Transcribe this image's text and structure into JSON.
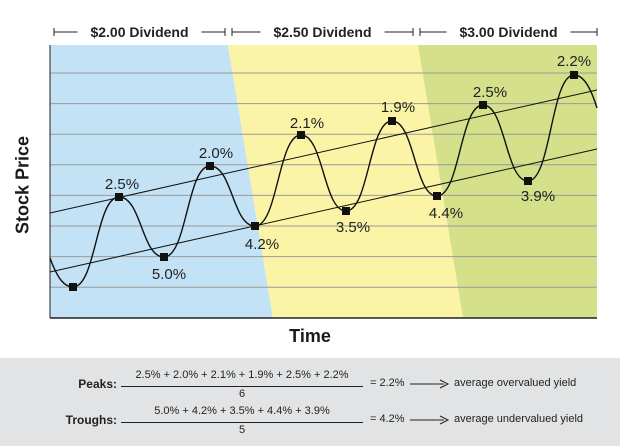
{
  "chart_data": {
    "type": "line",
    "xlabel": "Time",
    "ylabel": "Stock Price",
    "grid": true,
    "periods": [
      {
        "label": "$2.00 Dividend",
        "color": "#c3e2f5"
      },
      {
        "label": "$2.50 Dividend",
        "color": "#fbf4a6"
      },
      {
        "label": "$3.00 Dividend",
        "color": "#d5e08b"
      }
    ],
    "yield_points": [
      {
        "type": "trough",
        "label": ""
      },
      {
        "type": "peak",
        "label": "2.5%"
      },
      {
        "type": "trough",
        "label": "5.0%"
      },
      {
        "type": "peak",
        "label": "2.0%"
      },
      {
        "type": "trough",
        "label": "4.2%"
      },
      {
        "type": "peak",
        "label": "2.1%"
      },
      {
        "type": "trough",
        "label": "3.5%"
      },
      {
        "type": "peak",
        "label": "1.9%"
      },
      {
        "type": "trough",
        "label": "4.4%"
      },
      {
        "type": "peak",
        "label": "2.5%"
      },
      {
        "type": "trough",
        "label": "3.9%"
      },
      {
        "type": "peak",
        "label": "2.2%"
      }
    ]
  },
  "formulas": {
    "peaks": {
      "label": "Peaks:",
      "numerator": "2.5% + 2.0% + 2.1% + 1.9% + 2.5% + 2.2%",
      "denominator": "6",
      "result": "= 2.2%",
      "description": "average overvalued yield"
    },
    "troughs": {
      "label": "Troughs:",
      "numerator": "5.0% + 4.2% + 3.5% + 4.4% + 3.9%",
      "denominator": "5",
      "result": "= 4.2%",
      "description": "average undervalued yield"
    }
  },
  "colors": {
    "grid": "#9a9a9a",
    "line": "#111111",
    "marker": "#111111",
    "formula_bg": "#e2e3e4"
  }
}
